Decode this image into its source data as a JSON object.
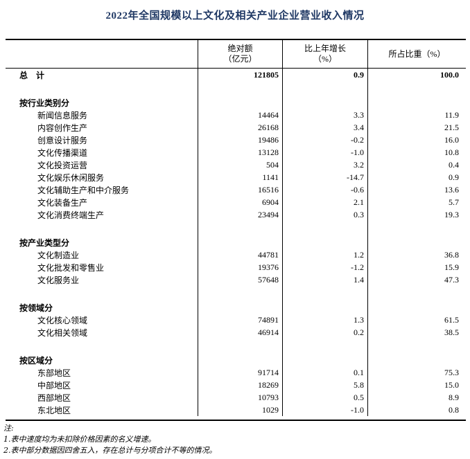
{
  "title": "2022年全国规模以上文化及相关产业企业营业收入情况",
  "colors": {
    "title_text": "#1f3864",
    "table_text": "#000000",
    "border": "#000000",
    "background": "#ffffff"
  },
  "table": {
    "columns": [
      {
        "lines": [
          "绝对额",
          "（亿元）"
        ]
      },
      {
        "lines": [
          "比上年增长",
          "（%）"
        ]
      },
      {
        "lines": [
          "所占比重（%）"
        ]
      }
    ],
    "rows": [
      {
        "type": "total",
        "label": "总　计",
        "values": [
          "121805",
          "0.9",
          "100.0"
        ]
      },
      {
        "type": "spacer"
      },
      {
        "type": "section",
        "label": "按行业类别分"
      },
      {
        "type": "item",
        "label": "新闻信息服务",
        "values": [
          "14464",
          "3.3",
          "11.9"
        ]
      },
      {
        "type": "item",
        "label": "内容创作生产",
        "values": [
          "26168",
          "3.4",
          "21.5"
        ]
      },
      {
        "type": "item",
        "label": "创意设计服务",
        "values": [
          "19486",
          "-0.2",
          "16.0"
        ]
      },
      {
        "type": "item",
        "label": "文化传播渠道",
        "values": [
          "13128",
          "-1.0",
          "10.8"
        ]
      },
      {
        "type": "item",
        "label": "文化投资运营",
        "values": [
          "504",
          "3.2",
          "0.4"
        ]
      },
      {
        "type": "item",
        "label": "文化娱乐休闲服务",
        "values": [
          "1141",
          "-14.7",
          "0.9"
        ]
      },
      {
        "type": "item",
        "label": "文化辅助生产和中介服务",
        "values": [
          "16516",
          "-0.6",
          "13.6"
        ]
      },
      {
        "type": "item",
        "label": "文化装备生产",
        "values": [
          "6904",
          "2.1",
          "5.7"
        ]
      },
      {
        "type": "item",
        "label": "文化消费终端生产",
        "values": [
          "23494",
          "0.3",
          "19.3"
        ]
      },
      {
        "type": "spacer"
      },
      {
        "type": "section",
        "label": "按产业类型分"
      },
      {
        "type": "item",
        "label": "文化制造业",
        "values": [
          "44781",
          "1.2",
          "36.8"
        ]
      },
      {
        "type": "item",
        "label": "文化批发和零售业",
        "values": [
          "19376",
          "-1.2",
          "15.9"
        ]
      },
      {
        "type": "item",
        "label": "文化服务业",
        "values": [
          "57648",
          "1.4",
          "47.3"
        ]
      },
      {
        "type": "spacer"
      },
      {
        "type": "section",
        "label": "按领域分"
      },
      {
        "type": "item",
        "label": "文化核心领域",
        "values": [
          "74891",
          "1.3",
          "61.5"
        ]
      },
      {
        "type": "item",
        "label": "文化相关领域",
        "values": [
          "46914",
          "0.2",
          "38.5"
        ]
      },
      {
        "type": "spacer"
      },
      {
        "type": "section",
        "label": "按区域分"
      },
      {
        "type": "item",
        "label": "东部地区",
        "values": [
          "91714",
          "0.1",
          "75.3"
        ]
      },
      {
        "type": "item",
        "label": "中部地区",
        "values": [
          "18269",
          "5.8",
          "15.0"
        ]
      },
      {
        "type": "item",
        "label": "西部地区",
        "values": [
          "10793",
          "0.5",
          "8.9"
        ]
      },
      {
        "type": "item",
        "label": "东北地区",
        "values": [
          "1029",
          "-1.0",
          "0.8"
        ]
      }
    ]
  },
  "notes": {
    "label": "注:",
    "items": [
      "1.表中速度均为未扣除价格因素的名义增速。",
      "2.表中部分数据因四舍五入，存在总计与分项合计不等的情况。"
    ]
  },
  "chart_data": {
    "type": "table",
    "title": "2022年全国规模以上文化及相关产业企业营业收入情况",
    "columns": [
      "绝对额（亿元）",
      "比上年增长（%）",
      "所占比重（%）"
    ],
    "groups": [
      {
        "group": "总计",
        "rows": [
          {
            "label": "总计",
            "absolute": 121805,
            "growth": 0.9,
            "share": 100.0
          }
        ]
      },
      {
        "group": "按行业类别分",
        "rows": [
          {
            "label": "新闻信息服务",
            "absolute": 14464,
            "growth": 3.3,
            "share": 11.9
          },
          {
            "label": "内容创作生产",
            "absolute": 26168,
            "growth": 3.4,
            "share": 21.5
          },
          {
            "label": "创意设计服务",
            "absolute": 19486,
            "growth": -0.2,
            "share": 16.0
          },
          {
            "label": "文化传播渠道",
            "absolute": 13128,
            "growth": -1.0,
            "share": 10.8
          },
          {
            "label": "文化投资运营",
            "absolute": 504,
            "growth": 3.2,
            "share": 0.4
          },
          {
            "label": "文化娱乐休闲服务",
            "absolute": 1141,
            "growth": -14.7,
            "share": 0.9
          },
          {
            "label": "文化辅助生产和中介服务",
            "absolute": 16516,
            "growth": -0.6,
            "share": 13.6
          },
          {
            "label": "文化装备生产",
            "absolute": 6904,
            "growth": 2.1,
            "share": 5.7
          },
          {
            "label": "文化消费终端生产",
            "absolute": 23494,
            "growth": 0.3,
            "share": 19.3
          }
        ]
      },
      {
        "group": "按产业类型分",
        "rows": [
          {
            "label": "文化制造业",
            "absolute": 44781,
            "growth": 1.2,
            "share": 36.8
          },
          {
            "label": "文化批发和零售业",
            "absolute": 19376,
            "growth": -1.2,
            "share": 15.9
          },
          {
            "label": "文化服务业",
            "absolute": 57648,
            "growth": 1.4,
            "share": 47.3
          }
        ]
      },
      {
        "group": "按领域分",
        "rows": [
          {
            "label": "文化核心领域",
            "absolute": 74891,
            "growth": 1.3,
            "share": 61.5
          },
          {
            "label": "文化相关领域",
            "absolute": 46914,
            "growth": 0.2,
            "share": 38.5
          }
        ]
      },
      {
        "group": "按区域分",
        "rows": [
          {
            "label": "东部地区",
            "absolute": 91714,
            "growth": 0.1,
            "share": 75.3
          },
          {
            "label": "中部地区",
            "absolute": 18269,
            "growth": 5.8,
            "share": 15.0
          },
          {
            "label": "西部地区",
            "absolute": 10793,
            "growth": 0.5,
            "share": 8.9
          },
          {
            "label": "东北地区",
            "absolute": 1029,
            "growth": -1.0,
            "share": 0.8
          }
        ]
      }
    ]
  }
}
